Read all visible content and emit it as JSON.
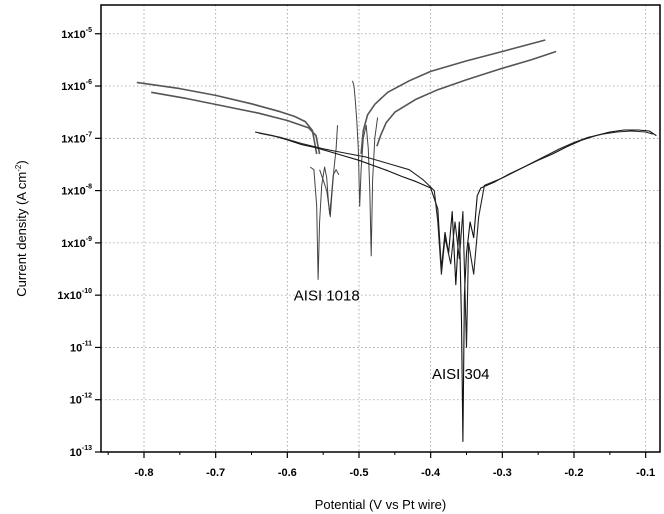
{
  "chart_data": {
    "type": "line",
    "xlabel": "Potential (V vs Pt wire)",
    "ylabel": {
      "prefix": "Current density (A cm",
      "sup": "-2",
      "suffix": ")"
    },
    "xlim": [
      -0.86,
      -0.08
    ],
    "ylim_log10": [
      -13,
      -4.45
    ],
    "y_scale": "log",
    "grid": true,
    "xticks": [
      -0.8,
      -0.7,
      -0.6,
      -0.5,
      -0.4,
      -0.3,
      -0.2,
      -0.1
    ],
    "xtick_labels": [
      "-0.8",
      "-0.7",
      "-0.6",
      "-0.5",
      "-0.4",
      "-0.3",
      "-0.2",
      "-0.1"
    ],
    "yticks": [
      {
        "base": "1x10",
        "exp": "-5",
        "log": -5
      },
      {
        "base": "1x10",
        "exp": "-6",
        "log": -6
      },
      {
        "base": "1x10",
        "exp": "-7",
        "log": -7
      },
      {
        "base": "1x10",
        "exp": "-8",
        "log": -8
      },
      {
        "base": "1x10",
        "exp": "-9",
        "log": -9
      },
      {
        "base": "1x10",
        "exp": "-10",
        "log": -10
      },
      {
        "base": "10",
        "exp": "-11",
        "log": -11
      },
      {
        "base": "10",
        "exp": "-12",
        "log": -12
      },
      {
        "base": "10",
        "exp": "-13",
        "log": -13
      }
    ],
    "annotations": [
      {
        "text": "AISI 1018",
        "x": -0.545,
        "log_y": -10.1
      },
      {
        "text": "AISI 304",
        "x": -0.358,
        "log_y": -11.6
      }
    ],
    "series": [
      {
        "color": "#555555",
        "width": 1.6,
        "points": [
          [
            -0.81,
            -5.93
          ],
          [
            -0.75,
            -6.05
          ],
          [
            -0.7,
            -6.18
          ],
          [
            -0.65,
            -6.34
          ],
          [
            -0.61,
            -6.49
          ],
          [
            -0.59,
            -6.58
          ],
          [
            -0.575,
            -6.68
          ],
          [
            -0.565,
            -6.85
          ],
          [
            -0.559,
            -7.3
          ]
        ]
      },
      {
        "color": "#555555",
        "width": 1.6,
        "points": [
          [
            -0.79,
            -6.12
          ],
          [
            -0.74,
            -6.24
          ],
          [
            -0.69,
            -6.38
          ],
          [
            -0.64,
            -6.52
          ],
          [
            -0.6,
            -6.66
          ],
          [
            -0.57,
            -6.8
          ],
          [
            -0.56,
            -6.95
          ],
          [
            -0.555,
            -7.3
          ]
        ]
      },
      {
        "color": "#444444",
        "width": 1.0,
        "points": [
          [
            -0.568,
            -7.55
          ],
          [
            -0.563,
            -7.6
          ],
          [
            -0.559,
            -8.3
          ],
          [
            -0.557,
            -9.7
          ],
          [
            -0.555,
            -8.6
          ],
          [
            -0.552,
            -7.9
          ],
          [
            -0.548,
            -7.55
          ],
          [
            -0.545,
            -7.75
          ],
          [
            -0.543,
            -8.15
          ],
          [
            -0.541,
            -8.45
          ],
          [
            -0.539,
            -8.2
          ],
          [
            -0.536,
            -7.7
          ],
          [
            -0.532,
            -7.6
          ],
          [
            -0.528,
            -7.7
          ]
        ]
      },
      {
        "color": "#444444",
        "width": 1.0,
        "points": [
          [
            -0.555,
            -7.6
          ],
          [
            -0.55,
            -7.8
          ],
          [
            -0.545,
            -8.0
          ],
          [
            -0.542,
            -8.3
          ],
          [
            -0.54,
            -8.5
          ],
          [
            -0.538,
            -8.1
          ],
          [
            -0.535,
            -7.6
          ],
          [
            -0.532,
            -7.2
          ],
          [
            -0.53,
            -6.75
          ]
        ]
      },
      {
        "color": "#444444",
        "width": 1.0,
        "points": [
          [
            -0.509,
            -5.9
          ],
          [
            -0.507,
            -6.0
          ],
          [
            -0.505,
            -6.3
          ],
          [
            -0.503,
            -6.7
          ],
          [
            -0.501,
            -7.2
          ],
          [
            -0.499,
            -8.3
          ],
          [
            -0.497,
            -7.6
          ],
          [
            -0.494,
            -7.0
          ],
          [
            -0.49,
            -6.75
          ],
          [
            -0.487,
            -7.2
          ],
          [
            -0.485,
            -8.0
          ],
          [
            -0.483,
            -9.25
          ],
          [
            -0.481,
            -7.8
          ],
          [
            -0.478,
            -7.0
          ],
          [
            -0.474,
            -6.6
          ]
        ]
      },
      {
        "color": "#555555",
        "width": 1.6,
        "points": [
          [
            -0.497,
            -7.3
          ],
          [
            -0.494,
            -6.85
          ],
          [
            -0.488,
            -6.55
          ],
          [
            -0.478,
            -6.35
          ],
          [
            -0.46,
            -6.12
          ],
          [
            -0.43,
            -5.9
          ],
          [
            -0.4,
            -5.72
          ],
          [
            -0.35,
            -5.52
          ],
          [
            -0.3,
            -5.34
          ],
          [
            -0.24,
            -5.12
          ]
        ]
      },
      {
        "color": "#555555",
        "width": 1.6,
        "points": [
          [
            -0.475,
            -7.15
          ],
          [
            -0.47,
            -6.95
          ],
          [
            -0.462,
            -6.7
          ],
          [
            -0.45,
            -6.5
          ],
          [
            -0.42,
            -6.25
          ],
          [
            -0.39,
            -6.07
          ],
          [
            -0.35,
            -5.88
          ],
          [
            -0.3,
            -5.66
          ],
          [
            -0.26,
            -5.5
          ],
          [
            -0.225,
            -5.34
          ]
        ]
      },
      {
        "color": "#111111",
        "width": 1.1,
        "points": [
          [
            -0.645,
            -6.88
          ],
          [
            -0.62,
            -6.95
          ],
          [
            -0.6,
            -7.03
          ],
          [
            -0.58,
            -7.12
          ],
          [
            -0.56,
            -7.18
          ],
          [
            -0.54,
            -7.26
          ],
          [
            -0.52,
            -7.34
          ],
          [
            -0.5,
            -7.42
          ],
          [
            -0.48,
            -7.52
          ],
          [
            -0.46,
            -7.62
          ],
          [
            -0.44,
            -7.73
          ],
          [
            -0.42,
            -7.83
          ],
          [
            -0.4,
            -7.95
          ],
          [
            -0.39,
            -8.35
          ],
          [
            -0.385,
            -9.5
          ],
          [
            -0.38,
            -8.8
          ],
          [
            -0.375,
            -9.2
          ],
          [
            -0.37,
            -8.4
          ],
          [
            -0.365,
            -9.8
          ],
          [
            -0.36,
            -8.6
          ],
          [
            -0.357,
            -10.5
          ],
          [
            -0.355,
            -12.8
          ],
          [
            -0.353,
            -10.0
          ],
          [
            -0.35,
            -9.2
          ],
          [
            -0.345,
            -8.6
          ],
          [
            -0.34,
            -8.9
          ],
          [
            -0.335,
            -8.1
          ],
          [
            -0.33,
            -7.95
          ],
          [
            -0.31,
            -7.83
          ],
          [
            -0.29,
            -7.68
          ],
          [
            -0.27,
            -7.55
          ],
          [
            -0.25,
            -7.42
          ],
          [
            -0.23,
            -7.3
          ],
          [
            -0.21,
            -7.16
          ],
          [
            -0.19,
            -7.04
          ],
          [
            -0.17,
            -6.95
          ],
          [
            -0.15,
            -6.88
          ],
          [
            -0.13,
            -6.84
          ],
          [
            -0.11,
            -6.84
          ],
          [
            -0.095,
            -6.86
          ],
          [
            -0.085,
            -6.95
          ]
        ]
      },
      {
        "color": "#222222",
        "width": 1.1,
        "points": [
          [
            -0.64,
            -6.9
          ],
          [
            -0.61,
            -6.98
          ],
          [
            -0.58,
            -7.1
          ],
          [
            -0.55,
            -7.2
          ],
          [
            -0.52,
            -7.28
          ],
          [
            -0.49,
            -7.36
          ],
          [
            -0.46,
            -7.48
          ],
          [
            -0.43,
            -7.6
          ],
          [
            -0.41,
            -7.8
          ],
          [
            -0.395,
            -8.0
          ],
          [
            -0.39,
            -8.6
          ],
          [
            -0.385,
            -9.6
          ],
          [
            -0.38,
            -8.9
          ],
          [
            -0.372,
            -9.4
          ],
          [
            -0.366,
            -8.6
          ],
          [
            -0.36,
            -9.3
          ],
          [
            -0.355,
            -8.4
          ],
          [
            -0.35,
            -11.0
          ],
          [
            -0.347,
            -9.0
          ],
          [
            -0.34,
            -9.6
          ],
          [
            -0.333,
            -8.5
          ],
          [
            -0.325,
            -7.9
          ],
          [
            -0.3,
            -7.76
          ],
          [
            -0.28,
            -7.62
          ],
          [
            -0.26,
            -7.48
          ],
          [
            -0.24,
            -7.34
          ],
          [
            -0.22,
            -7.2
          ],
          [
            -0.2,
            -7.08
          ],
          [
            -0.18,
            -6.98
          ],
          [
            -0.16,
            -6.92
          ],
          [
            -0.14,
            -6.88
          ],
          [
            -0.12,
            -6.86
          ],
          [
            -0.1,
            -6.88
          ],
          [
            -0.09,
            -6.92
          ]
        ]
      }
    ]
  }
}
